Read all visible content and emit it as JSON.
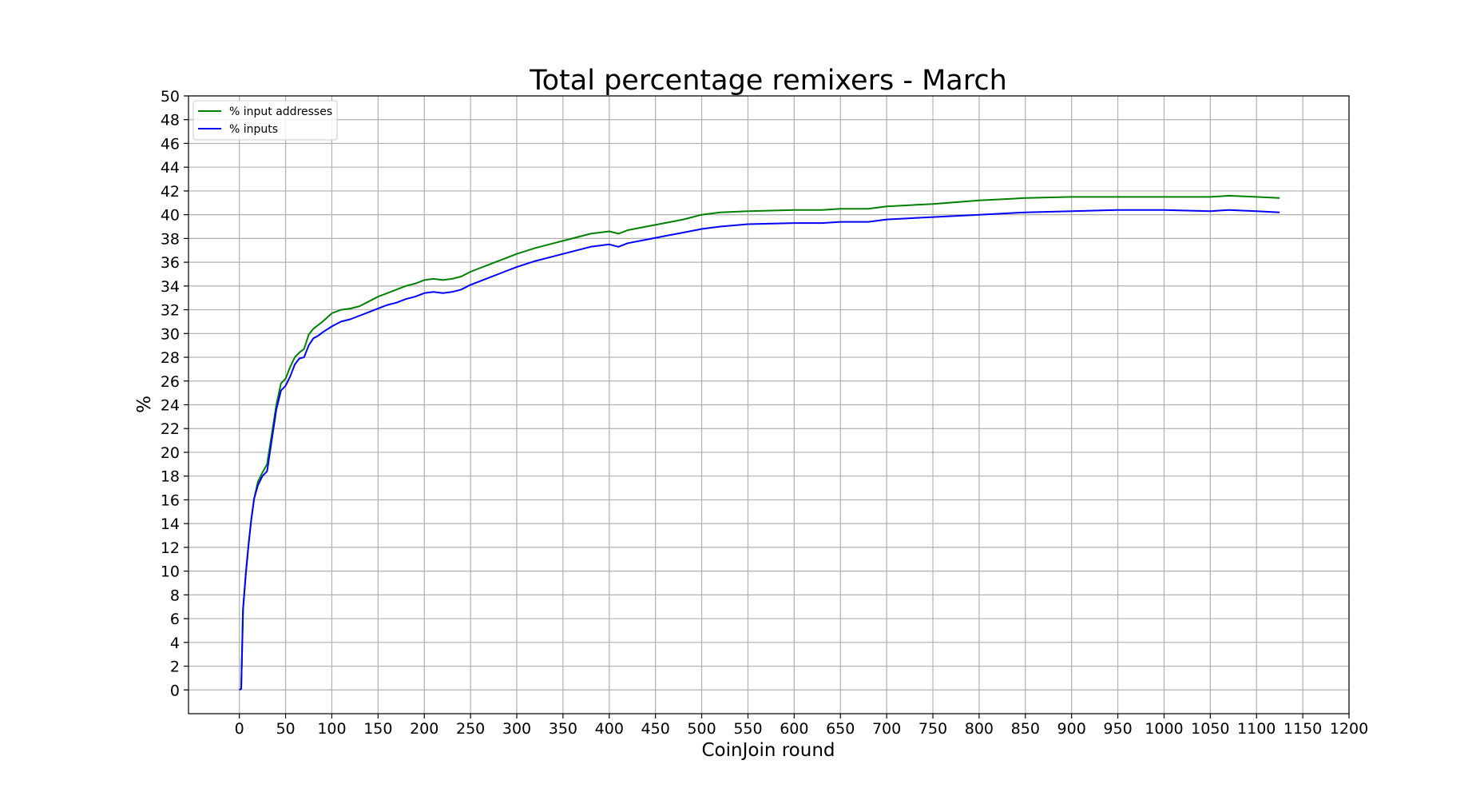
{
  "chart_data": {
    "type": "line",
    "title": "Total percentage remixers - March",
    "xlabel": "CoinJoin round",
    "ylabel": "%",
    "xlim": [
      -55,
      1200
    ],
    "ylim": [
      -2,
      50
    ],
    "xticks": [
      0,
      50,
      100,
      150,
      200,
      250,
      300,
      350,
      400,
      450,
      500,
      550,
      600,
      650,
      700,
      750,
      800,
      850,
      900,
      950,
      1000,
      1050,
      1100,
      1150,
      1200
    ],
    "yticks": [
      0,
      2,
      4,
      6,
      8,
      10,
      12,
      14,
      16,
      18,
      20,
      22,
      24,
      26,
      28,
      30,
      32,
      34,
      36,
      38,
      40,
      42,
      44,
      46,
      48,
      50
    ],
    "grid": true,
    "legend_position": "top-left",
    "series": [
      {
        "name": "% input addresses",
        "color": "#008000",
        "x": [
          0,
          2,
          4,
          7,
          10,
          13,
          16,
          20,
          25,
          30,
          35,
          40,
          45,
          50,
          55,
          60,
          65,
          70,
          75,
          80,
          85,
          90,
          100,
          110,
          120,
          130,
          140,
          150,
          160,
          170,
          180,
          190,
          200,
          210,
          220,
          230,
          240,
          250,
          260,
          270,
          280,
          290,
          300,
          320,
          340,
          360,
          380,
          400,
          410,
          420,
          440,
          460,
          480,
          500,
          520,
          550,
          600,
          630,
          650,
          680,
          700,
          750,
          800,
          850,
          900,
          950,
          1000,
          1050,
          1070,
          1100,
          1125
        ],
        "y": [
          0,
          0.1,
          6.8,
          9.8,
          12.3,
          14.4,
          16.1,
          17.5,
          18.3,
          19.0,
          21.5,
          24.0,
          25.8,
          26.2,
          27.2,
          28.0,
          28.4,
          28.7,
          29.9,
          30.4,
          30.7,
          31.0,
          31.7,
          32.0,
          32.1,
          32.3,
          32.7,
          33.1,
          33.4,
          33.7,
          34.0,
          34.2,
          34.5,
          34.6,
          34.5,
          34.6,
          34.8,
          35.2,
          35.5,
          35.8,
          36.1,
          36.4,
          36.7,
          37.2,
          37.6,
          38.0,
          38.4,
          38.6,
          38.4,
          38.7,
          39.0,
          39.3,
          39.6,
          40.0,
          40.2,
          40.3,
          40.4,
          40.4,
          40.5,
          40.5,
          40.7,
          40.9,
          41.2,
          41.4,
          41.5,
          41.5,
          41.5,
          41.5,
          41.6,
          41.5,
          41.4
        ]
      },
      {
        "name": "% inputs",
        "color": "#0000ff",
        "x": [
          0,
          2,
          4,
          7,
          10,
          13,
          16,
          20,
          25,
          30,
          35,
          40,
          45,
          50,
          55,
          60,
          65,
          70,
          75,
          80,
          85,
          90,
          100,
          110,
          120,
          130,
          140,
          150,
          160,
          170,
          180,
          190,
          200,
          210,
          220,
          230,
          240,
          250,
          260,
          270,
          280,
          290,
          300,
          320,
          340,
          360,
          380,
          400,
          410,
          420,
          440,
          460,
          480,
          500,
          520,
          550,
          600,
          630,
          650,
          680,
          700,
          750,
          800,
          850,
          900,
          950,
          1000,
          1050,
          1070,
          1100,
          1125
        ],
        "y": [
          0,
          0.1,
          6.8,
          9.8,
          12.3,
          14.4,
          16.1,
          17.2,
          18.0,
          18.4,
          21.0,
          23.6,
          25.2,
          25.6,
          26.4,
          27.4,
          27.9,
          28.0,
          29.0,
          29.6,
          29.8,
          30.1,
          30.6,
          31.0,
          31.2,
          31.5,
          31.8,
          32.1,
          32.4,
          32.6,
          32.9,
          33.1,
          33.4,
          33.5,
          33.4,
          33.5,
          33.7,
          34.1,
          34.4,
          34.7,
          35.0,
          35.3,
          35.6,
          36.1,
          36.5,
          36.9,
          37.3,
          37.5,
          37.3,
          37.6,
          37.9,
          38.2,
          38.5,
          38.8,
          39.0,
          39.2,
          39.3,
          39.3,
          39.4,
          39.4,
          39.6,
          39.8,
          40.0,
          40.2,
          40.3,
          40.4,
          40.4,
          40.3,
          40.4,
          40.3,
          40.2
        ]
      }
    ]
  }
}
